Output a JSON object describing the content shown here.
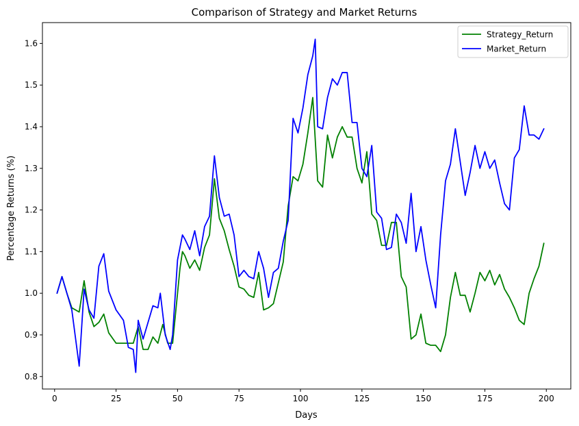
{
  "chart_data": {
    "type": "line",
    "title": "Comparison of Strategy and Market Returns",
    "xlabel": "Days",
    "ylabel": "Percentage Returns (%)",
    "xlim": [
      -4.95,
      209.95
    ],
    "ylim": [
      0.77,
      1.65
    ],
    "xticks": [
      0,
      25,
      50,
      75,
      100,
      125,
      150,
      175,
      200
    ],
    "xtick_labels": [
      "0",
      "25",
      "50",
      "75",
      "100",
      "125",
      "150",
      "175",
      "200"
    ],
    "yticks": [
      0.8,
      0.9,
      1.0,
      1.1,
      1.2,
      1.3,
      1.4,
      1.5,
      1.6
    ],
    "ytick_labels": [
      "0.8",
      "0.9",
      "1.0",
      "1.1",
      "1.2",
      "1.3",
      "1.4",
      "1.5",
      "1.6"
    ],
    "grid": false,
    "legend": {
      "position": "top-right"
    },
    "series": [
      {
        "name": "Strategy_Return",
        "color": "#008000",
        "x": [
          1,
          3,
          5,
          7,
          10,
          12,
          14,
          16,
          18,
          20,
          22,
          25,
          28,
          30,
          32,
          34,
          36,
          38,
          40,
          42,
          44,
          46,
          48,
          50,
          51,
          52,
          53,
          55,
          57,
          59,
          61,
          63,
          65,
          67,
          69,
          71,
          73,
          75,
          77,
          79,
          81,
          83,
          85,
          87,
          89,
          91,
          93,
          95,
          97,
          99,
          101,
          103,
          105,
          107,
          109,
          111,
          113,
          115,
          117,
          119,
          121,
          123,
          125,
          127,
          129,
          131,
          133,
          135,
          137,
          139,
          141,
          143,
          145,
          147,
          149,
          151,
          153,
          155,
          157,
          159,
          161,
          163,
          165,
          167,
          169,
          171,
          173,
          175,
          177,
          179,
          181,
          183,
          185,
          187,
          189,
          191,
          193,
          195,
          197,
          199
        ],
        "y": [
          1.0,
          1.04,
          1.0,
          0.965,
          0.955,
          1.03,
          0.955,
          0.92,
          0.93,
          0.95,
          0.905,
          0.88,
          0.88,
          0.88,
          0.88,
          0.92,
          0.865,
          0.865,
          0.895,
          0.88,
          0.925,
          0.88,
          0.88,
          1.0,
          1.06,
          1.1,
          1.09,
          1.06,
          1.08,
          1.055,
          1.11,
          1.14,
          1.275,
          1.18,
          1.15,
          1.105,
          1.065,
          1.015,
          1.01,
          0.995,
          0.99,
          1.05,
          0.96,
          0.965,
          0.975,
          1.025,
          1.075,
          1.21,
          1.28,
          1.27,
          1.31,
          1.385,
          1.47,
          1.27,
          1.255,
          1.38,
          1.325,
          1.375,
          1.4,
          1.375,
          1.375,
          1.3,
          1.265,
          1.34,
          1.19,
          1.175,
          1.115,
          1.115,
          1.17,
          1.17,
          1.04,
          1.015,
          0.89,
          0.9,
          0.95,
          0.88,
          0.875,
          0.875,
          0.86,
          0.9,
          0.99,
          1.05,
          0.995,
          0.995,
          0.955,
          1.0,
          1.05,
          1.03,
          1.055,
          1.02,
          1.045,
          1.01,
          0.99,
          0.965,
          0.935,
          0.925,
          1.0,
          1.035,
          1.065,
          1.12
        ]
      },
      {
        "name": "Market_Return",
        "color": "#0000ff",
        "x": [
          1,
          3,
          5,
          7,
          9,
          10,
          12,
          14,
          16,
          18,
          20,
          22,
          25,
          28,
          30,
          32,
          33,
          34,
          36,
          38,
          40,
          42,
          43,
          45,
          47,
          48,
          50,
          51,
          52,
          53,
          55,
          57,
          59,
          61,
          63,
          65,
          67,
          69,
          71,
          73,
          75,
          77,
          79,
          81,
          83,
          85,
          87,
          89,
          91,
          93,
          95,
          97,
          99,
          101,
          103,
          105,
          106,
          107,
          109,
          111,
          113,
          115,
          117,
          119,
          121,
          123,
          125,
          127,
          129,
          131,
          133,
          135,
          137,
          139,
          141,
          143,
          145,
          147,
          149,
          151,
          153,
          155,
          157,
          159,
          161,
          163,
          165,
          167,
          169,
          171,
          173,
          175,
          177,
          179,
          181,
          183,
          185,
          187,
          189,
          191,
          193,
          195,
          197,
          199
        ],
        "y": [
          1.0,
          1.04,
          1.0,
          0.96,
          0.87,
          0.825,
          1.01,
          0.96,
          0.94,
          1.065,
          1.095,
          1.005,
          0.96,
          0.935,
          0.87,
          0.865,
          0.81,
          0.935,
          0.89,
          0.93,
          0.97,
          0.965,
          1.0,
          0.9,
          0.865,
          0.9,
          1.08,
          1.11,
          1.14,
          1.13,
          1.105,
          1.15,
          1.09,
          1.16,
          1.185,
          1.33,
          1.23,
          1.185,
          1.19,
          1.14,
          1.04,
          1.055,
          1.04,
          1.035,
          1.1,
          1.06,
          0.99,
          1.05,
          1.06,
          1.125,
          1.175,
          1.42,
          1.385,
          1.445,
          1.525,
          1.57,
          1.61,
          1.4,
          1.395,
          1.47,
          1.515,
          1.5,
          1.53,
          1.53,
          1.41,
          1.41,
          1.3,
          1.28,
          1.355,
          1.195,
          1.18,
          1.105,
          1.11,
          1.19,
          1.17,
          1.12,
          1.24,
          1.1,
          1.16,
          1.08,
          1.02,
          0.965,
          1.14,
          1.27,
          1.31,
          1.395,
          1.315,
          1.235,
          1.29,
          1.355,
          1.3,
          1.34,
          1.3,
          1.32,
          1.265,
          1.215,
          1.2,
          1.325,
          1.345,
          1.45,
          1.38,
          1.38,
          1.37,
          1.395
        ]
      }
    ]
  }
}
